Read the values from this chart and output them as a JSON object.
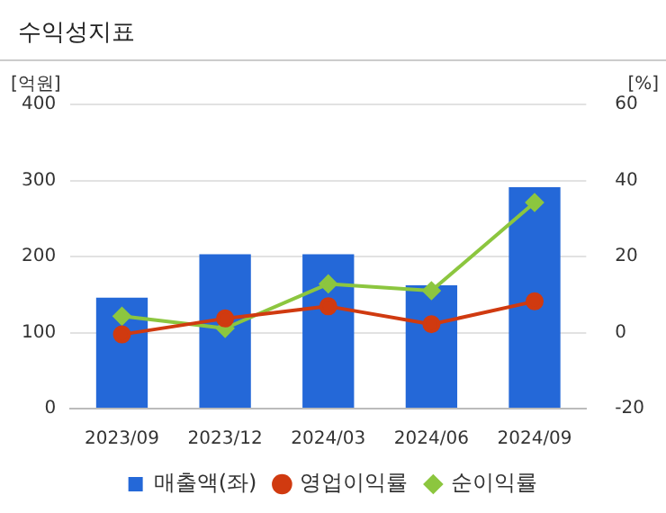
{
  "chart_data": {
    "type": "bar",
    "title": "수익성지표",
    "ylabel": "[억원]",
    "y2label": "[%]",
    "categories": [
      "2023/09",
      "2023/12",
      "2024/03",
      "2024/06",
      "2024/09"
    ],
    "series": [
      {
        "name": "매출액(좌)",
        "color": "#2468d8",
        "values": [
          146,
          203,
          203,
          162,
          291
        ]
      },
      {
        "name": "영업이익률",
        "type": "line",
        "axis": "y2",
        "marker": "circle",
        "color": "#d03a10",
        "values": [
          -0.5,
          3.7,
          6.9,
          2.2,
          8.2
        ]
      },
      {
        "name": "순이익률",
        "type": "line",
        "axis": "y2",
        "marker": "diamond",
        "color": "#8cc63f",
        "values": [
          4.3,
          1.1,
          12.8,
          11.0,
          34.2
        ]
      }
    ],
    "ylim": [
      0,
      400
    ],
    "yticks": [
      0,
      100,
      200,
      300,
      400
    ],
    "y2lim": [
      -20,
      60
    ],
    "y2ticks": [
      -20,
      0,
      20,
      40,
      60
    ],
    "grid": "y",
    "legend": "bottom"
  }
}
